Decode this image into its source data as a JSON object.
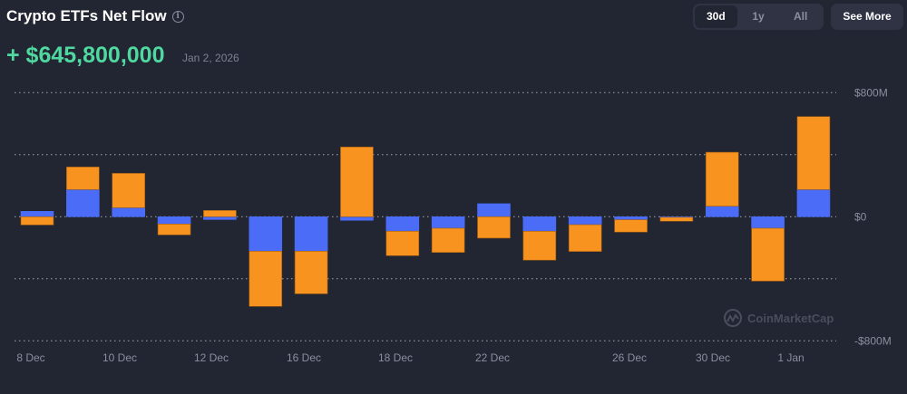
{
  "header": {
    "title": "Crypto ETFs Net Flow",
    "info_icon": "info-icon",
    "net_value": "+ $645,800,000",
    "date": "Jan 2, 2026"
  },
  "range_tabs": [
    {
      "label": "30d",
      "active": true
    },
    {
      "label": "1y",
      "active": false
    },
    {
      "label": "All",
      "active": false
    }
  ],
  "see_more": "See More",
  "watermark": "CoinMarketCap",
  "colors": {
    "blue": "#4a6cf7",
    "orange": "#f7931e",
    "positive": "#4fd8a0"
  },
  "chart_data": {
    "type": "bar",
    "stacked": true,
    "unit": "USD millions",
    "ylim": [
      -800,
      800
    ],
    "y_ticks": [
      {
        "value": 800,
        "label": "$800M"
      },
      {
        "value": 0,
        "label": "$0"
      },
      {
        "value": -800,
        "label": "-$800M"
      }
    ],
    "grid": true,
    "x_tick_labels": [
      "8 Dec",
      "10 Dec",
      "12 Dec",
      "16 Dec",
      "18 Dec",
      "22 Dec",
      "26 Dec",
      "30 Dec",
      "1 Jan"
    ],
    "series": [
      {
        "color": "#4a6cf7",
        "values": [
          35,
          175,
          58,
          -47,
          -18,
          -222,
          -222,
          -23,
          -93,
          -74,
          84,
          -93,
          -51,
          -19,
          -4,
          68,
          -74,
          175
        ]
      },
      {
        "color": "#f7931e",
        "values": [
          -53,
          146,
          222,
          -70,
          41,
          -356,
          -275,
          450,
          -158,
          -156,
          -138,
          -187,
          -173,
          -80,
          -25,
          348,
          -341,
          471
        ]
      }
    ]
  }
}
